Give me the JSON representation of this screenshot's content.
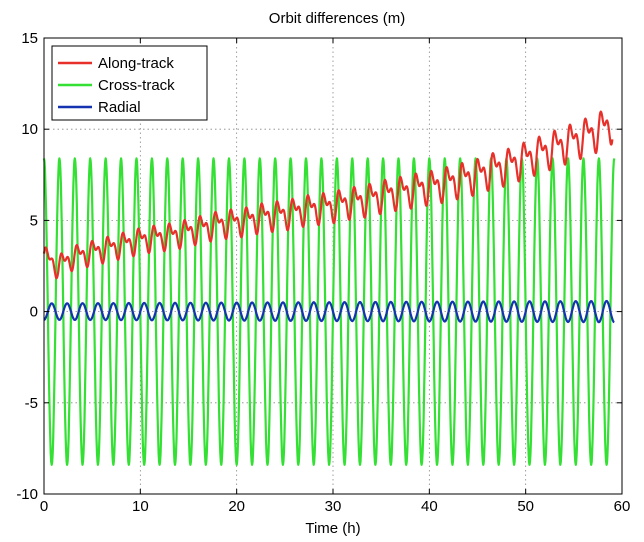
{
  "chart_data": {
    "type": "line",
    "title": "Orbit differences (m)",
    "xlabel": "Time (h)",
    "ylabel": "",
    "xlim": [
      0,
      60
    ],
    "ylim": [
      -10,
      15
    ],
    "xticks": [
      0,
      10,
      20,
      30,
      40,
      50,
      60
    ],
    "yticks": [
      -10,
      -5,
      0,
      5,
      10,
      15
    ],
    "xtick_labels": [
      "0",
      "10",
      "20",
      "30",
      "40",
      "50",
      "60"
    ],
    "ytick_labels": [
      "-10",
      "-5",
      "0",
      "5",
      "10",
      "15"
    ],
    "grid": true,
    "legend_position": "top-left",
    "series": [
      {
        "name": "Along-track",
        "color": "#e8302a",
        "x": [
          0,
          1.5,
          3,
          4.5,
          6,
          7.5,
          9,
          10.5,
          12,
          13.5,
          15,
          16.5,
          18,
          19.5,
          21,
          22.5,
          24,
          25.5,
          27,
          28.5,
          30,
          31.5,
          33,
          34.5,
          36,
          37.5,
          39,
          40.5,
          42,
          43.5,
          45,
          46.5,
          48,
          49.5,
          51,
          52.5,
          54,
          55.5,
          57,
          58.5,
          59
        ],
        "y": [
          3.0,
          2.5,
          3.0,
          3.2,
          3.4,
          3.6,
          3.8,
          4.0,
          4.1,
          4.2,
          4.4,
          4.6,
          4.8,
          4.9,
          5.0,
          5.2,
          5.3,
          5.4,
          5.6,
          5.7,
          5.8,
          6.0,
          6.1,
          6.3,
          6.5,
          6.6,
          6.8,
          6.9,
          7.1,
          7.3,
          7.5,
          7.8,
          8.0,
          8.3,
          8.6,
          8.9,
          9.2,
          9.5,
          9.8,
          10.2,
          10.4
        ],
        "oscillation_amplitude": 0.9,
        "oscillation_period_h": 1.6
      },
      {
        "name": "Cross-track",
        "color": "#33e033",
        "x": [
          0,
          60
        ],
        "y": [
          8.5,
          8.5
        ],
        "amplitude": 8.4,
        "period_h": 1.6,
        "x_end": 59.2
      },
      {
        "name": "Radial",
        "color": "#1533b0",
        "x": [
          0,
          60
        ],
        "y": [
          0,
          0
        ],
        "amplitude": 0.45,
        "period_h": 1.6,
        "x_end": 59.2
      }
    ]
  }
}
